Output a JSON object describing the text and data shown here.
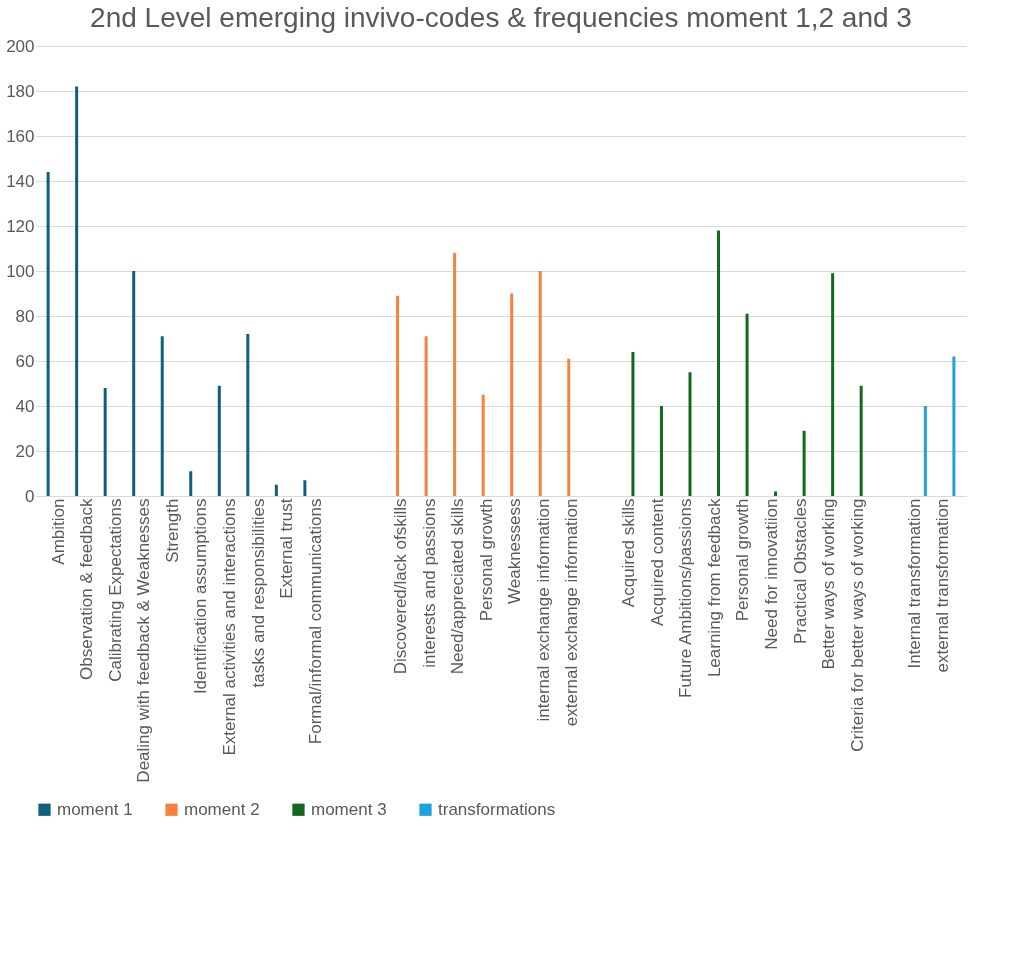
{
  "chart_data": {
    "type": "bar",
    "title": "2nd Level emerging invivo-codes & frequencies moment 1,2 and 3",
    "categories": [
      "Ambition",
      "Observation & feedback",
      "Calibrating Expectations",
      "Dealing with feedback & Weaknesses",
      "Strength",
      "Identification assumptions",
      "External activities and interactions",
      "tasks and responsibilities",
      "External trust",
      "Formal/informal communications",
      null,
      null,
      "Discovered/lack ofskills",
      "interests and passions",
      "Need/appreciated skills",
      "Personal growth",
      "Weaknessess",
      "internal exchange information",
      "external exchange information",
      null,
      "Acquired skills",
      "Acquired content",
      "Future Ambitions/passions",
      "Learning from feedback",
      "Personal growth",
      "Need for innovatiion",
      "Practical Obstacles",
      "Better ways of working",
      "Criteria for better ways of working",
      null,
      "Internal transformation",
      "external transformation"
    ],
    "series": [
      {
        "name": "moment 1",
        "color": "#0f5f7f",
        "values": [
          144,
          182,
          48,
          100,
          71,
          11,
          49,
          72,
          5,
          7,
          null,
          null,
          null,
          null,
          null,
          null,
          null,
          null,
          null,
          null,
          null,
          null,
          null,
          null,
          null,
          null,
          null,
          null,
          null,
          null,
          null,
          null
        ]
      },
      {
        "name": "moment 2",
        "color": "#f7813a",
        "values": [
          null,
          null,
          null,
          null,
          null,
          null,
          null,
          null,
          null,
          null,
          null,
          null,
          89,
          71,
          108,
          45,
          90,
          100,
          61,
          null,
          null,
          null,
          null,
          null,
          null,
          null,
          null,
          null,
          null,
          null,
          null,
          null
        ]
      },
      {
        "name": "moment 3",
        "color": "#11691d",
        "values": [
          null,
          null,
          null,
          null,
          null,
          null,
          null,
          null,
          null,
          null,
          null,
          null,
          null,
          null,
          null,
          null,
          null,
          null,
          null,
          null,
          64,
          40,
          55,
          118,
          81,
          2,
          29,
          99,
          49,
          null,
          null,
          null
        ]
      },
      {
        "name": "transformations",
        "color": "#1aa3dc",
        "values": [
          null,
          null,
          null,
          null,
          null,
          null,
          null,
          null,
          null,
          null,
          null,
          null,
          null,
          null,
          null,
          null,
          null,
          null,
          null,
          null,
          null,
          null,
          null,
          null,
          null,
          null,
          null,
          null,
          null,
          null,
          40,
          62
        ]
      }
    ],
    "ylim": [
      0,
      200
    ],
    "yticks": [
      0,
      20,
      40,
      60,
      80,
      100,
      120,
      140,
      160,
      180,
      200
    ],
    "grid": "y",
    "legend": "bottom"
  }
}
